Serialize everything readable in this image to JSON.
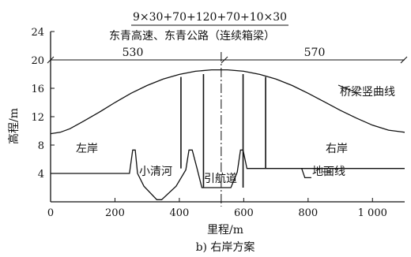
{
  "header": {
    "span_formula": "9×30+70+120+70+10×30",
    "bridge_name": "东青高速、东青公路（连续箱梁）"
  },
  "axes": {
    "ylabel": "高程/m",
    "xlabel": "里程/m",
    "yticks": [
      {
        "value": 4,
        "label": "4"
      },
      {
        "value": 8,
        "label": "8"
      },
      {
        "value": 12,
        "label": "12"
      },
      {
        "value": 16,
        "label": "16"
      },
      {
        "value": 20,
        "label": "20"
      },
      {
        "value": 24,
        "label": "24"
      }
    ],
    "xticks": [
      {
        "value": 0,
        "label": "0"
      },
      {
        "value": 200,
        "label": "200"
      },
      {
        "value": 400,
        "label": "400"
      },
      {
        "value": 600,
        "label": "600"
      },
      {
        "value": 800,
        "label": "800"
      },
      {
        "value": 1000,
        "label": "1 000"
      }
    ],
    "xlim": [
      0,
      1100
    ],
    "ylim": [
      0,
      24
    ]
  },
  "dimensions": {
    "left_length": "530",
    "right_length": "570",
    "elevation": 20,
    "divider_mileage": 530
  },
  "labels": {
    "left_bank": "左岸",
    "right_bank": "右岸",
    "river": "小清河",
    "channel": "引航道",
    "ground_line": "地面线",
    "vertical_curve": "桥梁竖曲线"
  },
  "caption": "b) 右岸方案",
  "profile": {
    "vertical_curve": [
      [
        0,
        9.6
      ],
      [
        30,
        9.8
      ],
      [
        60,
        10.3
      ],
      [
        100,
        11.3
      ],
      [
        150,
        12.6
      ],
      [
        200,
        14.0
      ],
      [
        250,
        15.3
      ],
      [
        300,
        16.4
      ],
      [
        350,
        17.3
      ],
      [
        400,
        17.95
      ],
      [
        450,
        18.4
      ],
      [
        500,
        18.6
      ],
      [
        550,
        18.6
      ],
      [
        600,
        18.4
      ],
      [
        650,
        17.95
      ],
      [
        700,
        17.3
      ],
      [
        750,
        16.4
      ],
      [
        800,
        15.3
      ],
      [
        850,
        14.1
      ],
      [
        900,
        12.9
      ],
      [
        950,
        11.8
      ],
      [
        1000,
        10.8
      ],
      [
        1050,
        10.1
      ],
      [
        1100,
        9.8
      ]
    ],
    "ground_line": [
      [
        0,
        4
      ],
      [
        245,
        4
      ],
      [
        255,
        7.3
      ],
      [
        263,
        7.3
      ],
      [
        270,
        4
      ],
      [
        290,
        2.2
      ],
      [
        330,
        0.3
      ],
      [
        345,
        0.3
      ],
      [
        390,
        2.2
      ],
      [
        420,
        4.5
      ],
      [
        430,
        7.3
      ],
      [
        440,
        7.3
      ],
      [
        455,
        4.7
      ],
      [
        470,
        2.0
      ],
      [
        560,
        2.0
      ],
      [
        580,
        4.2
      ],
      [
        590,
        7.3
      ],
      [
        598,
        7.3
      ],
      [
        610,
        4.7
      ],
      [
        1100,
        4.7
      ]
    ],
    "ground_line_drop": [
      [
        780,
        4.7
      ],
      [
        790,
        3.4
      ],
      [
        810,
        3.4
      ]
    ],
    "piers": [
      {
        "x": 405,
        "top": 17.6,
        "bottom": 4.7
      },
      {
        "x": 475,
        "top": 18.0,
        "bottom": 2.0
      },
      {
        "x": 598,
        "top": 18.0,
        "bottom": 2.0
      },
      {
        "x": 668,
        "top": 17.6,
        "bottom": 4.7
      }
    ]
  }
}
